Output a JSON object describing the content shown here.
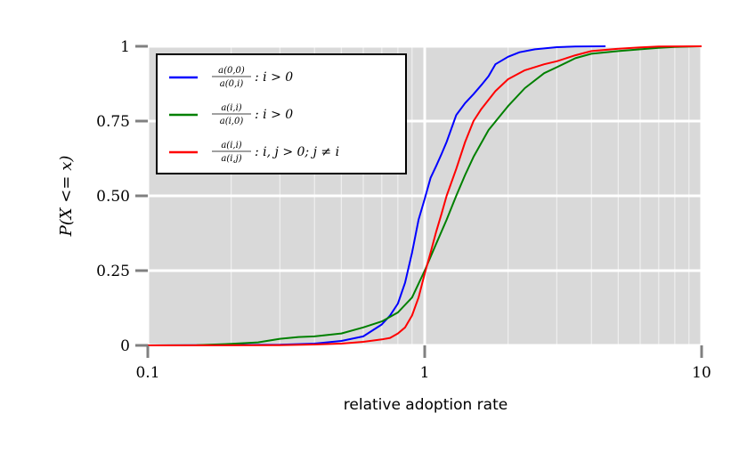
{
  "chart_data": {
    "type": "line",
    "title": "",
    "xlabel": "relative adoption rate",
    "ylabel": "P(X <= x)",
    "xscale": "log",
    "xlim": [
      0.1,
      10
    ],
    "ylim": [
      0,
      1
    ],
    "grid": true,
    "legend_position": "top-left",
    "x_ticks": [
      {
        "value": 0.1,
        "label": "0.1"
      },
      {
        "value": 1,
        "label": "1"
      },
      {
        "value": 10,
        "label": "10"
      }
    ],
    "y_ticks": [
      {
        "value": 0,
        "label": "0"
      },
      {
        "value": 0.25,
        "label": "0.25"
      },
      {
        "value": 0.5,
        "label": "0.50"
      },
      {
        "value": 0.75,
        "label": "0.75"
      },
      {
        "value": 1,
        "label": "1"
      }
    ],
    "series": [
      {
        "name": "a(0,0)/a(0,i) : i > 0",
        "legend_num": "a(0,0)",
        "legend_den": "a(0,i)",
        "legend_cond": ": i > 0",
        "color": "#0000ff",
        "x": [
          0.1,
          0.3,
          0.4,
          0.5,
          0.6,
          0.7,
          0.75,
          0.8,
          0.85,
          0.9,
          0.95,
          1.0,
          1.05,
          1.1,
          1.15,
          1.2,
          1.3,
          1.4,
          1.5,
          1.6,
          1.7,
          1.8,
          2.0,
          2.2,
          2.5,
          3.0,
          3.5,
          4.5
        ],
        "y": [
          0,
          0.002,
          0.006,
          0.015,
          0.03,
          0.07,
          0.1,
          0.14,
          0.21,
          0.31,
          0.42,
          0.49,
          0.56,
          0.6,
          0.64,
          0.68,
          0.77,
          0.81,
          0.84,
          0.87,
          0.9,
          0.94,
          0.965,
          0.98,
          0.99,
          0.997,
          0.999,
          1.0
        ]
      },
      {
        "name": "a(i,i)/a(i,0) : i > 0",
        "legend_num": "a(i,i)",
        "legend_den": "a(i,0)",
        "legend_cond": ": i > 0",
        "color": "#008000",
        "x": [
          0.1,
          0.15,
          0.2,
          0.25,
          0.3,
          0.35,
          0.4,
          0.5,
          0.6,
          0.7,
          0.8,
          0.9,
          1.0,
          1.1,
          1.2,
          1.3,
          1.4,
          1.5,
          1.7,
          2.0,
          2.3,
          2.7,
          3.0,
          3.5,
          4.0,
          5.0,
          6.0,
          7.0,
          8.0,
          10.0
        ],
        "y": [
          0,
          0.001,
          0.005,
          0.01,
          0.022,
          0.028,
          0.03,
          0.04,
          0.06,
          0.08,
          0.11,
          0.16,
          0.25,
          0.34,
          0.42,
          0.5,
          0.57,
          0.63,
          0.72,
          0.8,
          0.86,
          0.91,
          0.93,
          0.96,
          0.975,
          0.984,
          0.99,
          0.995,
          0.998,
          1.0
        ]
      },
      {
        "name": "a(i,i)/a(i,j) : i, j > 0; j != i",
        "legend_num": "a(i,i)",
        "legend_den": "a(i,j)",
        "legend_cond": ": i, j > 0; j ≠ i",
        "color": "#ff0000",
        "x": [
          0.1,
          0.3,
          0.4,
          0.5,
          0.6,
          0.7,
          0.75,
          0.8,
          0.85,
          0.9,
          0.95,
          1.0,
          1.05,
          1.1,
          1.15,
          1.2,
          1.3,
          1.4,
          1.5,
          1.6,
          1.8,
          2.0,
          2.3,
          2.7,
          3.0,
          3.5,
          4.0,
          5.0,
          6.0,
          7.0,
          10.0
        ],
        "y": [
          0,
          0.001,
          0.003,
          0.006,
          0.012,
          0.02,
          0.025,
          0.04,
          0.06,
          0.1,
          0.16,
          0.24,
          0.31,
          0.38,
          0.44,
          0.5,
          0.59,
          0.68,
          0.75,
          0.79,
          0.85,
          0.89,
          0.92,
          0.94,
          0.95,
          0.97,
          0.984,
          0.992,
          0.996,
          0.999,
          1.0
        ]
      }
    ]
  }
}
